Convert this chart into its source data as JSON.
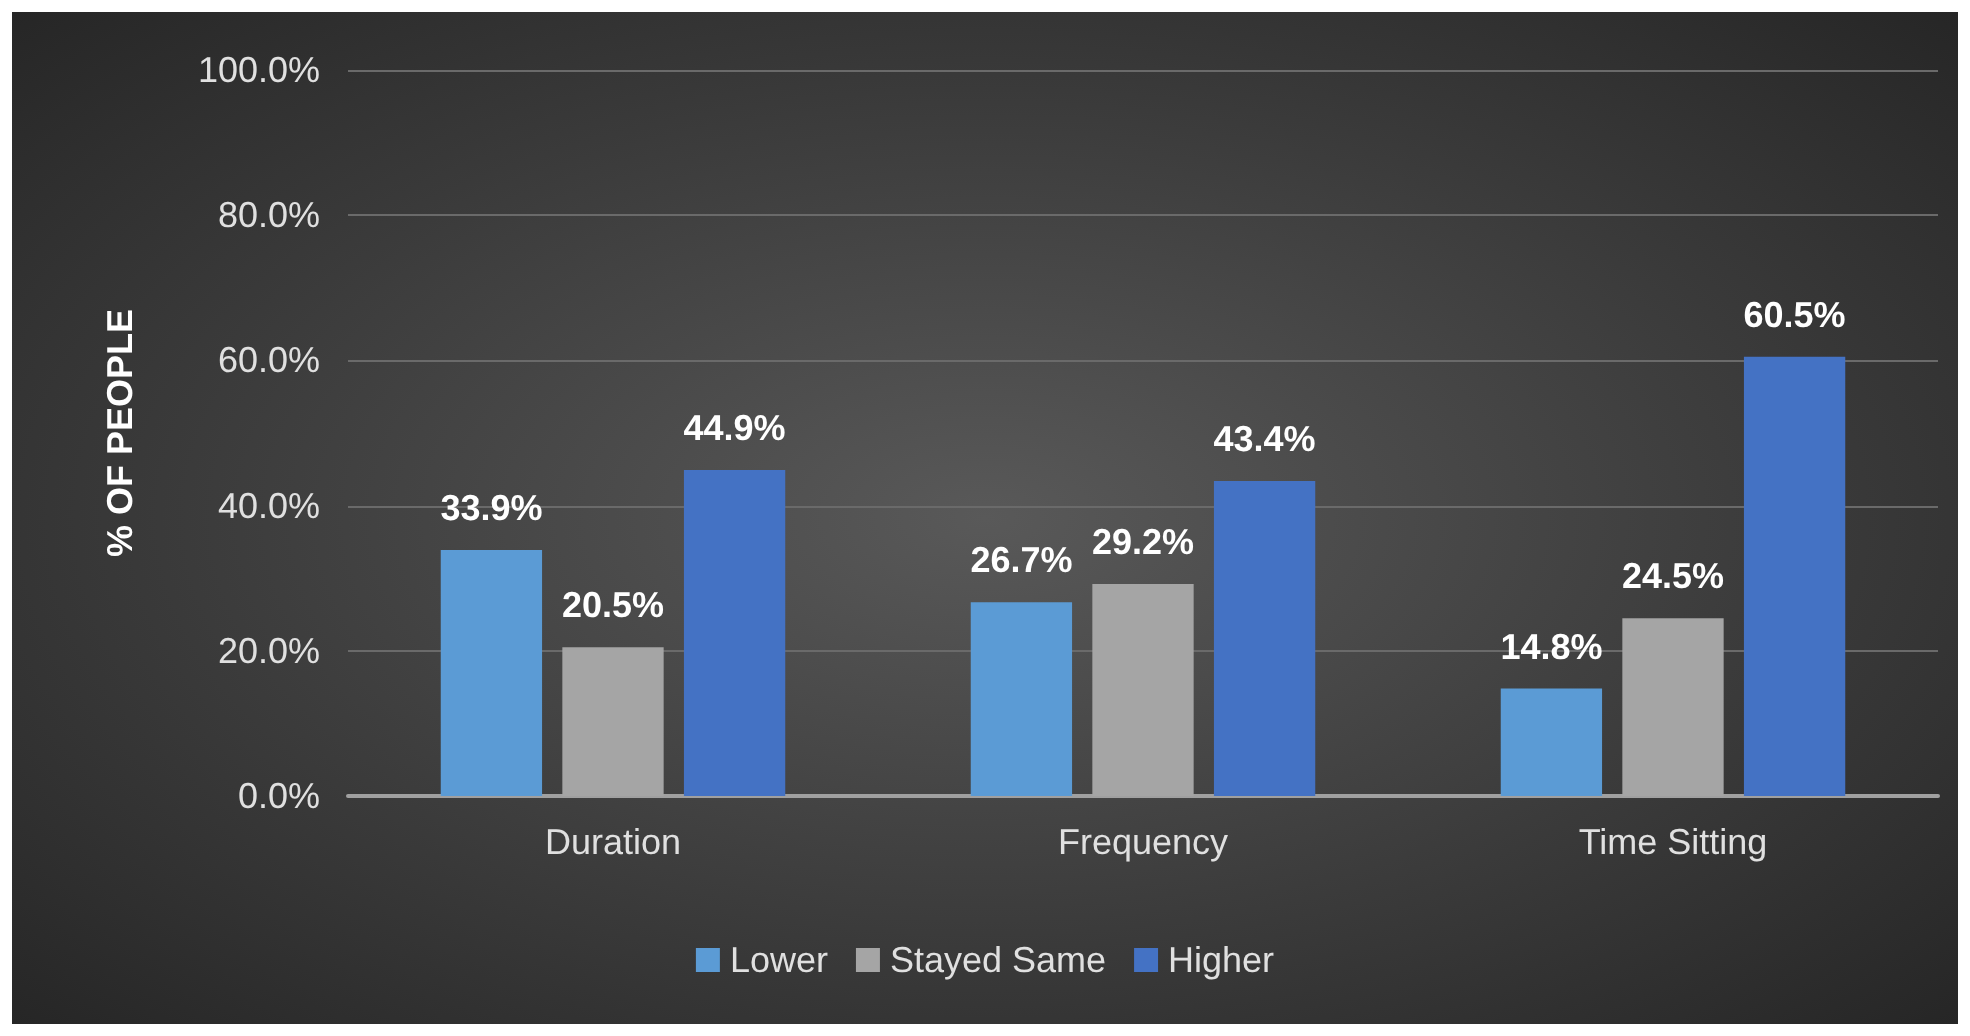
{
  "chart_data": {
    "type": "bar",
    "ylabel": "% OF PEOPLE",
    "categories": [
      "Duration",
      "Frequency",
      "Time Sitting"
    ],
    "series": [
      {
        "name": "Lower",
        "color": "#5b9bd5",
        "values": [
          33.9,
          26.7,
          14.8
        ],
        "value_labels": [
          "33.9%",
          "26.7%",
          "14.8%"
        ]
      },
      {
        "name": "Stayed Same",
        "color": "#a5a5a5",
        "values": [
          20.5,
          29.2,
          24.5
        ],
        "value_labels": [
          "20.5%",
          "29.2%",
          "24.5%"
        ]
      },
      {
        "name": "Higher",
        "color": "#4472c4",
        "values": [
          44.9,
          43.4,
          60.5
        ],
        "value_labels": [
          "44.9%",
          "43.4%",
          "60.5%"
        ]
      }
    ],
    "ylim": [
      0,
      100
    ],
    "yticks": [
      {
        "value": 0,
        "label": "0.0%"
      },
      {
        "value": 20,
        "label": "20.0%"
      },
      {
        "value": 40,
        "label": "40.0%"
      },
      {
        "value": 60,
        "label": "60.0%"
      },
      {
        "value": 80,
        "label": "80.0%"
      },
      {
        "value": 100,
        "label": "100.0%"
      }
    ],
    "grid": true,
    "legend": "bottom"
  }
}
